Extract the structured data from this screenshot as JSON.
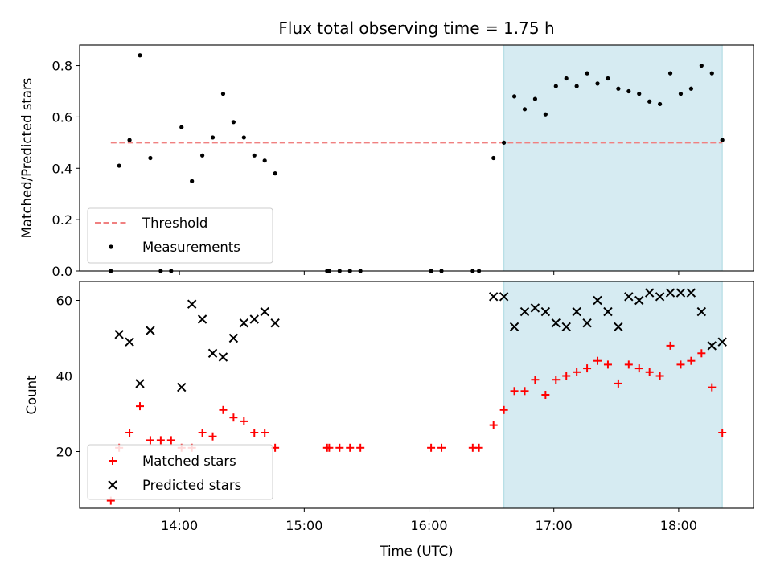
{
  "chart_data": [
    {
      "type": "scatter",
      "title": "Flux total observing time = 1.75 h",
      "xlabel": "",
      "ylabel": "Matched/Predicted stars",
      "xlim": [
        "13:12",
        "18:36"
      ],
      "ylim": [
        0,
        0.88
      ],
      "yticks": [
        0.0,
        0.2,
        0.4,
        0.6,
        0.8
      ],
      "ytick_labels": [
        "0.0",
        "0.2",
        "0.4",
        "0.6",
        "0.8"
      ],
      "xticks": [
        "14:00",
        "15:00",
        "16:00",
        "17:00",
        "18:00"
      ],
      "shaded_region": {
        "start": "16:36",
        "end": "18:21",
        "color": "#add8e6"
      },
      "threshold": {
        "name": "Threshold",
        "value": 0.5,
        "color": "#f08080",
        "style": "dashed"
      },
      "series": [
        {
          "name": "Measurements",
          "color": "#000000",
          "x": [
            "13:27",
            "13:31",
            "13:36",
            "13:41",
            "13:46",
            "13:51",
            "13:56",
            "14:01",
            "14:06",
            "14:11",
            "14:16",
            "14:21",
            "14:26",
            "14:31",
            "14:36",
            "14:41",
            "14:46",
            "15:11",
            "15:12",
            "15:17",
            "15:22",
            "15:27",
            "16:01",
            "16:06",
            "16:21",
            "16:24",
            "16:31",
            "16:36",
            "16:41",
            "16:46",
            "16:51",
            "16:56",
            "17:01",
            "17:06",
            "17:11",
            "17:16",
            "17:21",
            "17:26",
            "17:31",
            "17:36",
            "17:41",
            "17:46",
            "17:51",
            "17:56",
            "18:01",
            "18:06",
            "18:11",
            "18:16",
            "18:21"
          ],
          "y": [
            0.0,
            0.41,
            0.51,
            0.84,
            0.44,
            0.0,
            0.0,
            0.56,
            0.35,
            0.45,
            0.52,
            0.69,
            0.58,
            0.52,
            0.45,
            0.43,
            0.38,
            0.0,
            0.0,
            0.0,
            0.0,
            0.0,
            0.0,
            0.0,
            0.0,
            0.0,
            0.44,
            0.5,
            0.68,
            0.63,
            0.67,
            0.61,
            0.72,
            0.75,
            0.72,
            0.77,
            0.73,
            0.75,
            0.71,
            0.7,
            0.69,
            0.66,
            0.65,
            0.77,
            0.69,
            0.71,
            0.8,
            0.77,
            0.51
          ]
        }
      ],
      "legend": {
        "position": "lower-left",
        "entries": [
          "Threshold",
          "Measurements"
        ]
      }
    },
    {
      "type": "scatter",
      "title": "",
      "xlabel": "Time (UTC)",
      "ylabel": "Count",
      "xlim": [
        "13:12",
        "18:36"
      ],
      "ylim": [
        5,
        65
      ],
      "yticks": [
        20,
        40,
        60
      ],
      "ytick_labels": [
        "20",
        "40",
        "60"
      ],
      "xticks": [
        "14:00",
        "15:00",
        "16:00",
        "17:00",
        "18:00"
      ],
      "xtick_labels": [
        "14:00",
        "15:00",
        "16:00",
        "17:00",
        "18:00"
      ],
      "shaded_region": {
        "start": "16:36",
        "end": "18:21",
        "color": "#add8e6"
      },
      "series": [
        {
          "name": "Matched stars",
          "color": "#ff0000",
          "marker": "plus",
          "x": [
            "13:27",
            "13:31",
            "13:36",
            "13:41",
            "13:46",
            "13:51",
            "13:56",
            "14:01",
            "14:06",
            "14:11",
            "14:16",
            "14:21",
            "14:26",
            "14:31",
            "14:36",
            "14:41",
            "14:46",
            "15:11",
            "15:12",
            "15:17",
            "15:22",
            "15:27",
            "16:01",
            "16:06",
            "16:21",
            "16:24",
            "16:31",
            "16:36",
            "16:41",
            "16:46",
            "16:51",
            "16:56",
            "17:01",
            "17:06",
            "17:11",
            "17:16",
            "17:21",
            "17:26",
            "17:31",
            "17:36",
            "17:41",
            "17:46",
            "17:51",
            "17:56",
            "18:01",
            "18:06",
            "18:11",
            "18:16",
            "18:21"
          ],
          "y": [
            7,
            21,
            25,
            32,
            23,
            23,
            23,
            21,
            21,
            25,
            24,
            31,
            29,
            28,
            25,
            25,
            21,
            21,
            21,
            21,
            21,
            21,
            21,
            21,
            21,
            21,
            27,
            31,
            36,
            36,
            39,
            35,
            39,
            40,
            41,
            42,
            44,
            43,
            38,
            43,
            42,
            41,
            40,
            48,
            43,
            44,
            46,
            37,
            25
          ]
        },
        {
          "name": "Predicted stars",
          "color": "#000000",
          "marker": "x",
          "x": [
            "13:31",
            "13:36",
            "13:41",
            "13:46",
            "14:01",
            "14:06",
            "14:11",
            "14:16",
            "14:21",
            "14:26",
            "14:31",
            "14:36",
            "14:41",
            "14:46",
            "16:31",
            "16:36",
            "16:41",
            "16:46",
            "16:51",
            "16:56",
            "17:01",
            "17:06",
            "17:11",
            "17:16",
            "17:21",
            "17:26",
            "17:31",
            "17:36",
            "17:41",
            "17:46",
            "17:51",
            "17:56",
            "18:01",
            "18:06",
            "18:11",
            "18:16",
            "18:21"
          ],
          "y": [
            51,
            49,
            38,
            52,
            37,
            59,
            55,
            46,
            45,
            50,
            54,
            55,
            57,
            54,
            61,
            61,
            53,
            57,
            58,
            57,
            54,
            53,
            57,
            54,
            60,
            57,
            53,
            61,
            60,
            62,
            61,
            62,
            62,
            62,
            57,
            48,
            49
          ]
        }
      ],
      "legend": {
        "position": "lower-left",
        "entries": [
          "Matched stars",
          "Predicted stars"
        ]
      }
    }
  ]
}
